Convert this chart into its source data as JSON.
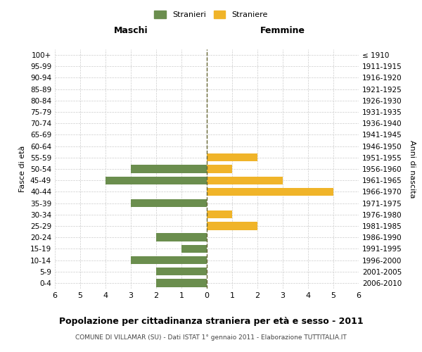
{
  "age_groups": [
    "100+",
    "95-99",
    "90-94",
    "85-89",
    "80-84",
    "75-79",
    "70-74",
    "65-69",
    "60-64",
    "55-59",
    "50-54",
    "45-49",
    "40-44",
    "35-39",
    "30-34",
    "25-29",
    "20-24",
    "15-19",
    "10-14",
    "5-9",
    "0-4"
  ],
  "birth_years": [
    "≤ 1910",
    "1911-1915",
    "1916-1920",
    "1921-1925",
    "1926-1930",
    "1931-1935",
    "1936-1940",
    "1941-1945",
    "1946-1950",
    "1951-1955",
    "1956-1960",
    "1961-1965",
    "1966-1970",
    "1971-1975",
    "1976-1980",
    "1981-1985",
    "1986-1990",
    "1991-1995",
    "1996-2000",
    "2001-2005",
    "2006-2010"
  ],
  "maschi": [
    0,
    0,
    0,
    0,
    0,
    0,
    0,
    0,
    0,
    0,
    3,
    4,
    0,
    3,
    0,
    0,
    2,
    1,
    3,
    2,
    2
  ],
  "femmine": [
    0,
    0,
    0,
    0,
    0,
    0,
    0,
    0,
    0,
    2,
    1,
    3,
    5,
    0,
    1,
    2,
    0,
    0,
    0,
    0,
    0
  ],
  "male_color": "#6b8e4e",
  "female_color": "#f0b429",
  "background_color": "#ffffff",
  "grid_color": "#cccccc",
  "center_line_color": "#666633",
  "title": "Popolazione per cittadinanza straniera per età e sesso - 2011",
  "subtitle": "COMUNE DI VILLAMAR (SU) - Dati ISTAT 1° gennaio 2011 - Elaborazione TUTTITALIA.IT",
  "xlabel_left": "Maschi",
  "xlabel_right": "Femmine",
  "ylabel_left": "Fasce di età",
  "ylabel_right": "Anni di nascita",
  "legend_stranieri": "Stranieri",
  "legend_straniere": "Straniere",
  "xlim": 6,
  "bar_height": 0.7
}
